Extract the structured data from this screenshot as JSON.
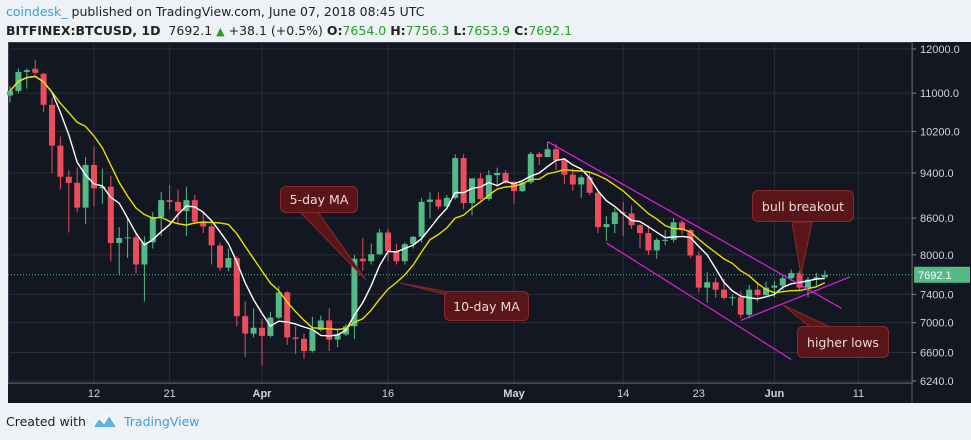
{
  "header": {
    "user": "coindesk_",
    "published": " published on TradingView.com, June 07, 2018 08:45 UTC",
    "symbol": "BITFINEX:BTCUSD, 1D",
    "last": "7692.1",
    "change_icon": "triangle-up-icon",
    "change": "+38.1 (+0.5%)",
    "o_label": "O:",
    "o": "7654.0",
    "h_label": "H:",
    "h": "7756.3",
    "l_label": "L:",
    "l": "7653.9",
    "c_label": "C:",
    "c": "7692.1"
  },
  "footer": {
    "created": "Created with",
    "brand": "TradingView",
    "logo_icon": "tradingview-logo-icon"
  },
  "colors": {
    "background": "#131722",
    "grid": "#2a2e39",
    "up": "#53b987",
    "down": "#eb4d5c",
    "ma5": "#ffffff",
    "ma10": "#e8e000",
    "trendline": "#e020e0",
    "price_label": "#53b987",
    "annotation": "#5a1518"
  },
  "annotations": {
    "ma5": "5-day MA",
    "ma10": "10-day MA",
    "breakout": "bull breakout",
    "higher_lows": "higher lows"
  },
  "chart_data": {
    "type": "candlestick",
    "interval": "1D",
    "y_scale": "log",
    "ylim": [
      6240,
      12000
    ],
    "grid": true,
    "y_ticks": [
      "12000.0",
      "11000.0",
      "10200.0",
      "9400.0",
      "8600.0",
      "8000.0",
      "7400.0",
      "7000.0",
      "6600.0",
      "6240.0"
    ],
    "y_tick_values": [
      12000,
      11000,
      10200,
      9400,
      8600,
      8000,
      7400,
      7000,
      6600,
      6240
    ],
    "x_ticks": [
      {
        "date": "2018-03-12",
        "label": "12"
      },
      {
        "date": "2018-03-21",
        "label": "21"
      },
      {
        "date": "2018-04-01",
        "label": "Apr"
      },
      {
        "date": "2018-04-16",
        "label": "16"
      },
      {
        "date": "2018-05-01",
        "label": "May"
      },
      {
        "date": "2018-05-14",
        "label": "14"
      },
      {
        "date": "2018-05-23",
        "label": "23"
      },
      {
        "date": "2018-06-01",
        "label": "Jun"
      },
      {
        "date": "2018-06-11",
        "label": "11"
      }
    ],
    "last_price": 7692.1,
    "last_price_label": "7692.1",
    "moving_averages": [
      {
        "period": 5,
        "color": "#ffffff"
      },
      {
        "period": 10,
        "color": "#e8e000"
      }
    ],
    "trendlines": [
      {
        "from": [
          "2018-05-05",
          10000
        ],
        "to": [
          "2018-06-09",
          7200
        ]
      },
      {
        "from": [
          "2018-05-12",
          8190
        ],
        "to": [
          "2018-06-03",
          6510
        ]
      },
      {
        "from": [
          "2018-05-28",
          7030
        ],
        "to": [
          "2018-06-10",
          7660
        ]
      }
    ],
    "columns": [
      "date",
      "open",
      "high",
      "low",
      "close"
    ],
    "candles": [
      [
        "2018-03-02",
        10950,
        11150,
        10800,
        11050
      ],
      [
        "2018-03-03",
        11050,
        11550,
        11000,
        11470
      ],
      [
        "2018-03-04",
        11470,
        11550,
        11100,
        11510
      ],
      [
        "2018-03-05",
        11540,
        11750,
        11400,
        11450
      ],
      [
        "2018-03-06",
        11430,
        11450,
        10600,
        10750
      ],
      [
        "2018-03-07",
        10750,
        10900,
        9400,
        9920
      ],
      [
        "2018-03-08",
        9920,
        10100,
        9100,
        9330
      ],
      [
        "2018-03-09",
        9330,
        9450,
        8360,
        9220
      ],
      [
        "2018-03-10",
        9220,
        9500,
        8700,
        8780
      ],
      [
        "2018-03-11",
        8780,
        9700,
        8500,
        9550
      ],
      [
        "2018-03-12",
        9550,
        9900,
        8800,
        9120
      ],
      [
        "2018-03-13",
        9120,
        9480,
        8850,
        9150
      ],
      [
        "2018-03-14",
        9150,
        9350,
        7900,
        8190
      ],
      [
        "2018-03-15",
        8190,
        8450,
        7700,
        8270
      ],
      [
        "2018-03-16",
        8270,
        8600,
        7950,
        8280
      ],
      [
        "2018-03-17",
        8280,
        8350,
        7720,
        7850
      ],
      [
        "2018-03-18",
        7850,
        8300,
        7300,
        8200
      ],
      [
        "2018-03-19",
        8200,
        8700,
        8100,
        8620
      ],
      [
        "2018-03-20",
        8620,
        9050,
        8300,
        8910
      ],
      [
        "2018-03-21",
        8910,
        9180,
        8750,
        8880
      ],
      [
        "2018-03-22",
        8880,
        9100,
        8500,
        8720
      ],
      [
        "2018-03-23",
        8720,
        9150,
        8300,
        8910
      ],
      [
        "2018-03-24",
        8910,
        9000,
        8500,
        8540
      ],
      [
        "2018-03-25",
        8540,
        8700,
        8350,
        8460
      ],
      [
        "2018-03-26",
        8460,
        8500,
        7850,
        8150
      ],
      [
        "2018-03-27",
        8150,
        8200,
        7750,
        7800
      ],
      [
        "2018-03-28",
        7800,
        8100,
        7750,
        7950
      ],
      [
        "2018-03-29",
        7950,
        7980,
        6950,
        7090
      ],
      [
        "2018-03-30",
        7090,
        7300,
        6540,
        6850
      ],
      [
        "2018-03-31",
        6850,
        7200,
        6800,
        6930
      ],
      [
        "2018-04-01",
        6930,
        7050,
        6440,
        6820
      ],
      [
        "2018-04-02",
        6820,
        7150,
        6800,
        7070
      ],
      [
        "2018-04-03",
        7070,
        7520,
        7050,
        7430
      ],
      [
        "2018-04-04",
        7430,
        7450,
        6700,
        6800
      ],
      [
        "2018-04-05",
        6800,
        6950,
        6580,
        6780
      ],
      [
        "2018-04-06",
        6780,
        6850,
        6520,
        6620
      ],
      [
        "2018-04-07",
        6620,
        7080,
        6600,
        6900
      ],
      [
        "2018-04-08",
        6900,
        7100,
        6880,
        7030
      ],
      [
        "2018-04-09",
        7030,
        7200,
        6620,
        6770
      ],
      [
        "2018-04-10",
        6770,
        6900,
        6670,
        6840
      ],
      [
        "2018-04-11",
        6840,
        6980,
        6820,
        6950
      ],
      [
        "2018-04-12",
        6950,
        8000,
        6780,
        7940
      ],
      [
        "2018-04-13",
        7940,
        8270,
        7750,
        7900
      ],
      [
        "2018-04-14",
        7900,
        8180,
        7850,
        8010
      ],
      [
        "2018-04-15",
        8010,
        8420,
        8000,
        8360
      ],
      [
        "2018-04-16",
        8360,
        8420,
        7900,
        8060
      ],
      [
        "2018-04-17",
        8060,
        8180,
        7850,
        7900
      ],
      [
        "2018-04-18",
        7900,
        8200,
        7850,
        8170
      ],
      [
        "2018-04-19",
        8170,
        8300,
        8100,
        8290
      ],
      [
        "2018-04-20",
        8290,
        8950,
        8200,
        8880
      ],
      [
        "2018-04-21",
        8880,
        9050,
        8600,
        8920
      ],
      [
        "2018-04-22",
        8920,
        9050,
        8750,
        8800
      ],
      [
        "2018-04-23",
        8800,
        9000,
        8800,
        8950
      ],
      [
        "2018-04-24",
        8950,
        9750,
        8920,
        9680
      ],
      [
        "2018-04-25",
        9680,
        9750,
        8750,
        8860
      ],
      [
        "2018-04-26",
        8860,
        9300,
        8650,
        9300
      ],
      [
        "2018-04-27",
        9300,
        9400,
        8900,
        8930
      ],
      [
        "2018-04-28",
        8930,
        9450,
        8900,
        9360
      ],
      [
        "2018-04-29",
        9360,
        9500,
        9150,
        9400
      ],
      [
        "2018-04-30",
        9400,
        9450,
        9200,
        9240
      ],
      [
        "2018-05-01",
        9240,
        9250,
        8850,
        9070
      ],
      [
        "2018-05-02",
        9070,
        9250,
        9050,
        9230
      ],
      [
        "2018-05-03",
        9230,
        9800,
        9200,
        9760
      ],
      [
        "2018-05-04",
        9760,
        9800,
        9550,
        9700
      ],
      [
        "2018-05-05",
        9700,
        9990,
        9700,
        9850
      ],
      [
        "2018-05-06",
        9850,
        9950,
        9450,
        9640
      ],
      [
        "2018-05-07",
        9640,
        9650,
        9200,
        9370
      ],
      [
        "2018-05-08",
        9370,
        9480,
        9080,
        9190
      ],
      [
        "2018-05-09",
        9190,
        9360,
        8950,
        9320
      ],
      [
        "2018-05-10",
        9320,
        9400,
        9000,
        9040
      ],
      [
        "2018-05-11",
        9040,
        9050,
        8350,
        8450
      ],
      [
        "2018-05-12",
        8450,
        8640,
        8220,
        8500
      ],
      [
        "2018-05-13",
        8500,
        8770,
        8350,
        8700
      ],
      [
        "2018-05-14",
        8700,
        8880,
        8300,
        8680
      ],
      [
        "2018-05-15",
        8680,
        8820,
        8420,
        8480
      ],
      [
        "2018-05-16",
        8480,
        8500,
        8100,
        8350
      ],
      [
        "2018-05-17",
        8350,
        8480,
        8000,
        8070
      ],
      [
        "2018-05-18",
        8070,
        8270,
        7940,
        8240
      ],
      [
        "2018-05-19",
        8240,
        8400,
        8150,
        8240
      ],
      [
        "2018-05-20",
        8240,
        8600,
        8200,
        8530
      ],
      [
        "2018-05-21",
        8530,
        8570,
        8330,
        8400
      ],
      [
        "2018-05-22",
        8400,
        8420,
        7950,
        7990
      ],
      [
        "2018-05-23",
        7990,
        8050,
        7430,
        7500
      ],
      [
        "2018-05-24",
        7500,
        7730,
        7280,
        7580
      ],
      [
        "2018-05-25",
        7580,
        7650,
        7350,
        7470
      ],
      [
        "2018-05-26",
        7470,
        7630,
        7320,
        7350
      ],
      [
        "2018-05-27",
        7350,
        7400,
        7240,
        7360
      ],
      [
        "2018-05-28",
        7360,
        7450,
        7060,
        7110
      ],
      [
        "2018-05-29",
        7110,
        7540,
        7060,
        7470
      ],
      [
        "2018-05-30",
        7470,
        7580,
        7290,
        7390
      ],
      [
        "2018-05-31",
        7390,
        7590,
        7380,
        7500
      ],
      [
        "2018-06-01",
        7500,
        7600,
        7360,
        7530
      ],
      [
        "2018-06-02",
        7530,
        7690,
        7460,
        7640
      ],
      [
        "2018-06-03",
        7640,
        7770,
        7600,
        7720
      ],
      [
        "2018-06-04",
        7720,
        7760,
        7460,
        7500
      ],
      [
        "2018-06-05",
        7500,
        7660,
        7360,
        7620
      ],
      [
        "2018-06-06",
        7620,
        7720,
        7520,
        7654
      ],
      [
        "2018-06-07",
        7654,
        7756.3,
        7653.9,
        7692.1
      ]
    ]
  }
}
